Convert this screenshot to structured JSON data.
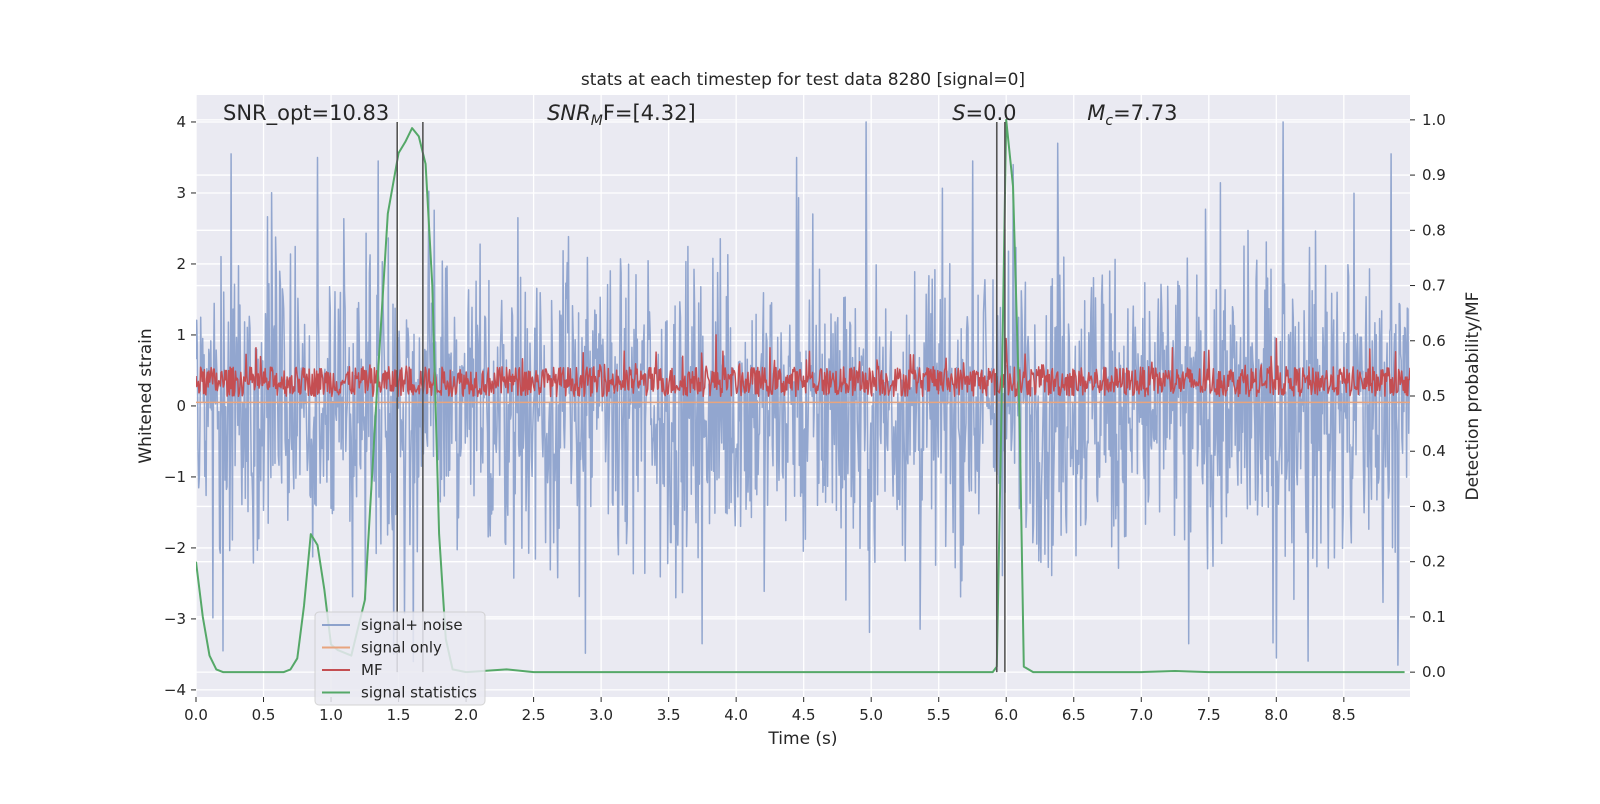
{
  "chart_data": {
    "type": "line",
    "title": "stats at each timestep for test data 8280 [signal=0]",
    "xlabel": "Time (s)",
    "ylabel_left": "Whitened strain",
    "ylabel_right": "Detection probability/MF",
    "xlim": [
      0.0,
      8.99
    ],
    "ylim_left": [
      -4.1,
      4.38
    ],
    "ylim_right": [
      -0.045,
      1.045
    ],
    "x_ticks": [
      "0.0",
      "0.5",
      "1.0",
      "1.5",
      "2.0",
      "2.5",
      "3.0",
      "3.5",
      "4.0",
      "4.5",
      "5.0",
      "5.5",
      "6.0",
      "6.5",
      "7.0",
      "7.5",
      "8.0",
      "8.5"
    ],
    "y_ticks_left": [
      "4",
      "3",
      "2",
      "1",
      "0",
      "−1",
      "−2",
      "−3",
      "−4"
    ],
    "y_ticks_right": [
      "1.0",
      "0.9",
      "0.8",
      "0.7",
      "0.6",
      "0.5",
      "0.4",
      "0.3",
      "0.2",
      "0.1",
      "0.0"
    ],
    "grid": true,
    "legend_position": "lower-left",
    "annotations": [
      {
        "text": "SNR_opt=10.83",
        "x": 0.2
      },
      {
        "html_parts": [
          "SNR",
          "M",
          "F=[4.32]"
        ],
        "x": 2.6
      },
      {
        "html_parts": [
          "S",
          "=0.0"
        ],
        "x": 5.6
      },
      {
        "html_parts": [
          "M",
          "c",
          "=7.73"
        ],
        "x": 6.6
      }
    ],
    "vertical_lines": [
      1.49,
      1.68,
      5.93,
      5.99
    ],
    "series": [
      {
        "name": "signal+ noise",
        "color": "#8da2cc",
        "axis": "left",
        "kind": "noise",
        "amplitude_range": [
          -3.6,
          4.0
        ],
        "core_range": [
          -2.0,
          2.0
        ],
        "peaks": [
          {
            "x": 0.26,
            "y": 3.55
          },
          {
            "x": 0.9,
            "y": 3.5
          },
          {
            "x": 1.35,
            "y": 3.45
          },
          {
            "x": 4.45,
            "y": 3.5
          },
          {
            "x": 5.75,
            "y": 3.45
          },
          {
            "x": 6.05,
            "y": 3.4
          },
          {
            "x": 6.38,
            "y": 3.7
          },
          {
            "x": 8.05,
            "y": 4.0
          },
          {
            "x": 8.85,
            "y": 3.55
          },
          {
            "x": 0.2,
            "y": -3.45
          },
          {
            "x": 3.75,
            "y": -3.35
          },
          {
            "x": 8.0,
            "y": -3.55
          },
          {
            "x": 8.9,
            "y": -3.65
          },
          {
            "x": 7.35,
            "y": -3.35
          }
        ]
      },
      {
        "name": "signal only",
        "color": "#e8a47e",
        "axis": "left",
        "kind": "flat",
        "value": 0.05
      },
      {
        "name": "MF",
        "color": "#c44e52",
        "axis": "left",
        "kind": "mf",
        "baseline": 0.28,
        "range": [
          0.0,
          1.0
        ],
        "peaks": [
          {
            "x": 3.85,
            "y": 1.0
          },
          {
            "x": 8.0,
            "y": 0.95
          },
          {
            "x": 6.0,
            "y": 0.95
          }
        ]
      },
      {
        "name": "signal statistics",
        "color": "#55a868",
        "axis": "right",
        "kind": "line",
        "x": [
          0.0,
          0.05,
          0.1,
          0.15,
          0.2,
          0.3,
          0.5,
          0.65,
          0.7,
          0.75,
          0.8,
          0.85,
          0.9,
          0.95,
          1.0,
          1.05,
          1.15,
          1.25,
          1.35,
          1.42,
          1.5,
          1.55,
          1.6,
          1.65,
          1.7,
          1.75,
          1.8,
          1.85,
          1.9,
          2.0,
          2.3,
          2.5,
          5.9,
          5.93,
          5.96,
          6.0,
          6.05,
          6.1,
          6.13,
          6.2,
          7.0,
          7.25,
          7.5,
          8.95
        ],
        "y": [
          0.2,
          0.1,
          0.03,
          0.005,
          0.0,
          0.0,
          0.0,
          0.0,
          0.005,
          0.025,
          0.12,
          0.25,
          0.23,
          0.15,
          0.05,
          0.04,
          0.03,
          0.13,
          0.55,
          0.83,
          0.94,
          0.96,
          0.985,
          0.97,
          0.92,
          0.7,
          0.25,
          0.06,
          0.005,
          0.0,
          0.005,
          0.0,
          0.0,
          0.01,
          0.4,
          1.0,
          0.88,
          0.45,
          0.01,
          0.0,
          0.0,
          0.002,
          0.0,
          0.0
        ]
      }
    ]
  }
}
